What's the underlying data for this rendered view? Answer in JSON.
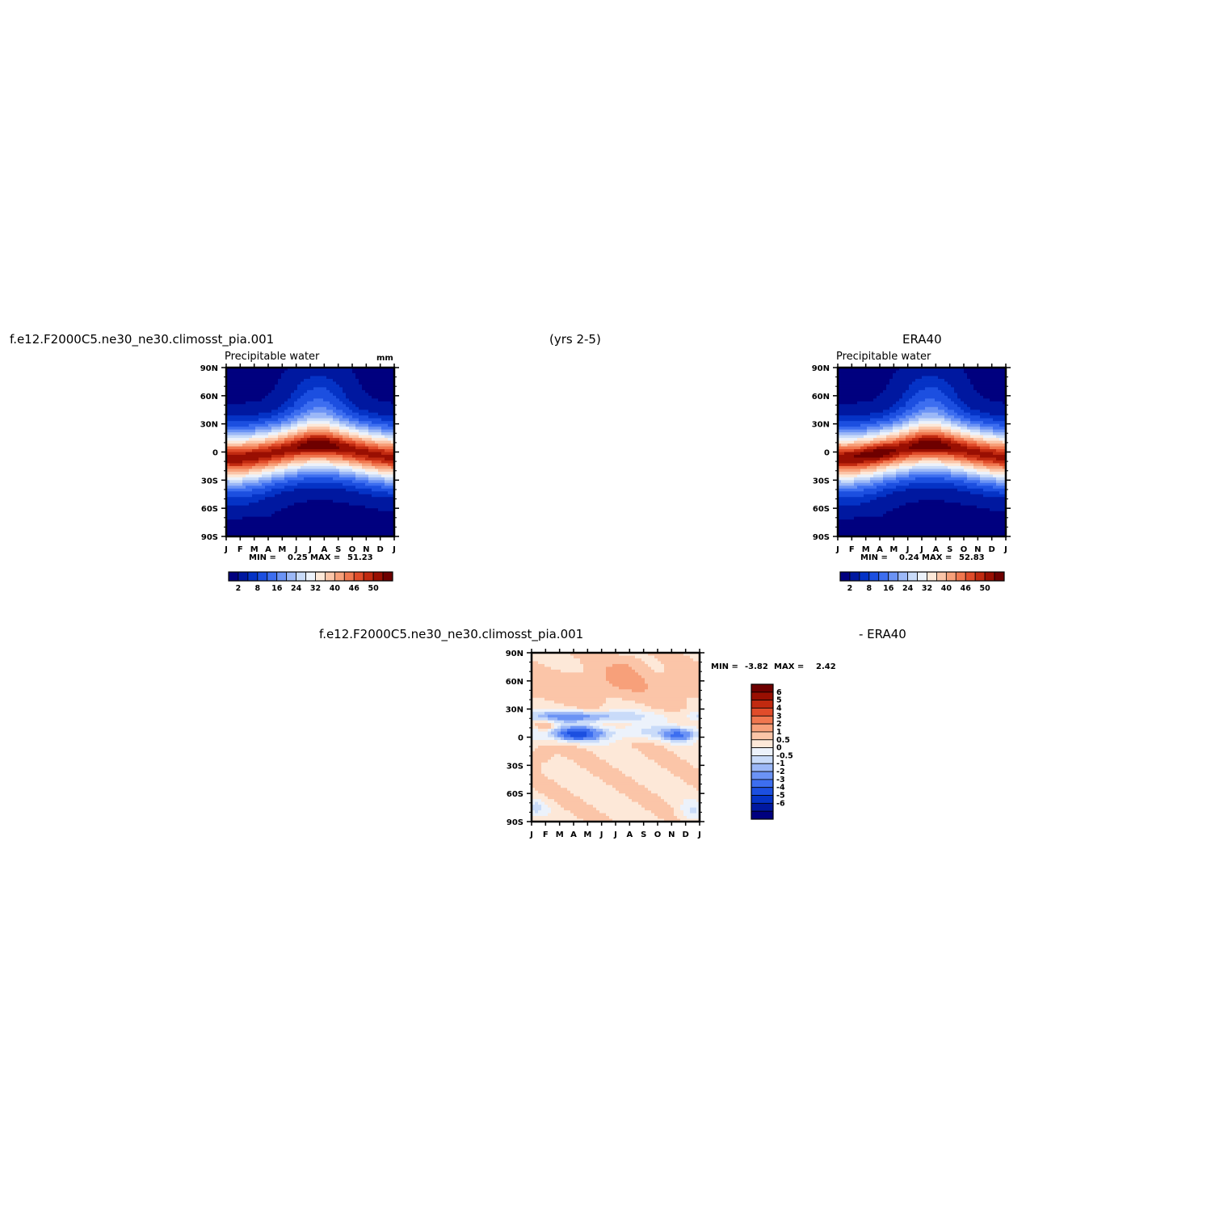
{
  "header": {
    "case_name": "f.e12.F2000C5.ne30_ne30.climosst_pia.001",
    "years": "(yrs 2-5)",
    "obs_name": "ERA40",
    "diff_case_name": "f.e12.F2000C5.ne30_ne30.climosst_pia.001",
    "diff_obs_name": "- ERA40"
  },
  "colors": {
    "abs_palette": [
      "#00007f",
      "#0018a0",
      "#0533c6",
      "#1c4fe0",
      "#3d6ef0",
      "#6b93f5",
      "#9cb8f7",
      "#c9dbf9",
      "#ecf2fb",
      "#fde8d8",
      "#fbc5a8",
      "#f7a07a",
      "#f0774f",
      "#e04c2a",
      "#c12a10",
      "#990f02",
      "#6e0000"
    ],
    "diff_palette": [
      "#6e0000",
      "#990f02",
      "#c12a10",
      "#e04c2a",
      "#f0774f",
      "#f7a07a",
      "#fbc5a8",
      "#fde8d8",
      "#ecf2fb",
      "#c9dbf9",
      "#9cb8f7",
      "#6b93f5",
      "#3d6ef0",
      "#1c4fe0",
      "#0533c6",
      "#0018a0",
      "#00007f"
    ]
  },
  "chart_data": [
    {
      "type": "heatmap",
      "id": "model",
      "title": "Precipitable water",
      "units": "mm",
      "x_tick_labels": [
        "J",
        "F",
        "M",
        "A",
        "M",
        "J",
        "J",
        "A",
        "S",
        "O",
        "N",
        "D",
        "J"
      ],
      "y_tick_labels": [
        "90N",
        "60N",
        "30N",
        "0",
        "30S",
        "60S",
        "90S"
      ],
      "ylim": [
        -90,
        90
      ],
      "min_label": "MIN =",
      "min_value": "0.25",
      "max_label": "MAX =",
      "max_value": "51.23",
      "colorbar_labels": [
        "2",
        "8",
        "16",
        "24",
        "32",
        "40",
        "46",
        "50"
      ],
      "min": 0.25,
      "max": 51.23
    },
    {
      "type": "heatmap",
      "id": "obs",
      "title": "Precipitable water",
      "x_tick_labels": [
        "J",
        "F",
        "M",
        "A",
        "M",
        "J",
        "J",
        "A",
        "S",
        "O",
        "N",
        "D",
        "J"
      ],
      "y_tick_labels": [
        "90N",
        "60N",
        "30N",
        "0",
        "30S",
        "60S",
        "90S"
      ],
      "ylim": [
        -90,
        90
      ],
      "min_label": "MIN =",
      "min_value": "0.24",
      "max_label": "MAX =",
      "max_value": "52.83",
      "colorbar_labels": [
        "2",
        "8",
        "16",
        "24",
        "32",
        "40",
        "46",
        "50"
      ],
      "min": 0.24,
      "max": 52.83
    },
    {
      "type": "heatmap",
      "id": "diff",
      "x_tick_labels": [
        "J",
        "F",
        "M",
        "A",
        "M",
        "J",
        "J",
        "A",
        "S",
        "O",
        "N",
        "D",
        "J"
      ],
      "y_tick_labels": [
        "90N",
        "60N",
        "30N",
        "0",
        "30S",
        "60S",
        "90S"
      ],
      "ylim": [
        -90,
        90
      ],
      "min_label": "MIN =",
      "min_value": "-3.82",
      "max_label": "MAX =",
      "max_value": "2.42",
      "colorbar_labels": [
        "6",
        "5",
        "4",
        "3",
        "2",
        "1",
        "0.5",
        "0",
        "-0.5",
        "-1",
        "-2",
        "-3",
        "-4",
        "-5",
        "-6"
      ],
      "min": -3.82,
      "max": 2.42
    }
  ]
}
